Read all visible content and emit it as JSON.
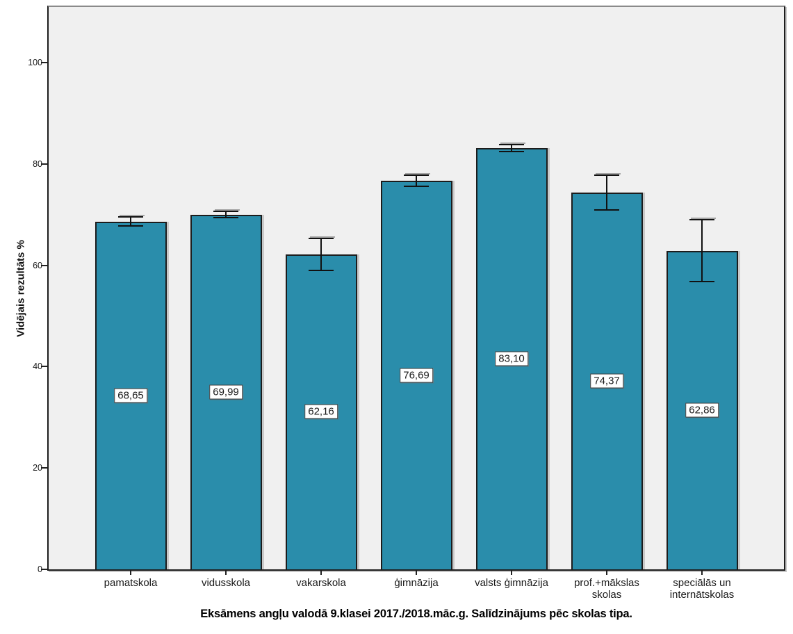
{
  "chart_data": {
    "type": "bar",
    "title": "Eksāmens angļu valodā 9.klasei 2017./2018.māc.g. Salīdzinājums pēc skolas tipa.",
    "ylabel": "Vidējais rezultāts %",
    "xlabel": "",
    "categories": [
      "pamatskola",
      "vidusskola",
      "vakarskola",
      "ģimnāzija",
      "valsts ģimnāzija",
      "prof.+mākslas\nskolas",
      "speciālās un\ninternātskolas"
    ],
    "values": [
      68.65,
      69.99,
      62.16,
      76.69,
      83.1,
      74.37,
      62.86
    ],
    "value_labels": [
      "68,65",
      "69,99",
      "62,16",
      "76,69",
      "83,10",
      "74,37",
      "62,86"
    ],
    "error_bars": [
      {
        "low": 67.8,
        "high": 69.5
      },
      {
        "low": 69.4,
        "high": 70.6
      },
      {
        "low": 59.0,
        "high": 65.3
      },
      {
        "low": 75.6,
        "high": 77.8
      },
      {
        "low": 82.4,
        "high": 83.8
      },
      {
        "low": 71.0,
        "high": 77.8
      },
      {
        "low": 56.8,
        "high": 69.0
      }
    ],
    "yticks": [
      "0",
      "20",
      "40",
      "60",
      "80",
      "100"
    ],
    "ylim": [
      0,
      111
    ],
    "grid": false,
    "legend_position": "none",
    "colors": {
      "bar_fill": "#2A8DAB",
      "bar_border": "#1C1C1C",
      "plot_background": "#F0F0F0",
      "page_background": "#FFFFFF",
      "axis": "#222222",
      "error_bar": "#111111"
    }
  }
}
